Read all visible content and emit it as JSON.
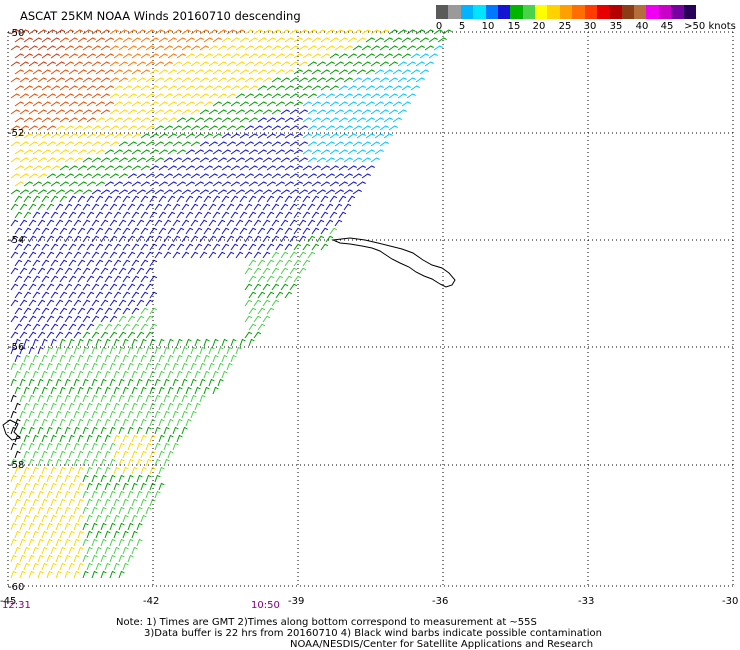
{
  "title": "ASCAT 25KM NOAA Winds 20160710 descending",
  "legend": {
    "labels": [
      "0",
      "5",
      "10",
      "15",
      "20",
      "25",
      "30",
      "35",
      "40",
      "45",
      ">50 knots"
    ],
    "colors": [
      "#5a5a5a",
      "#9a9a9a",
      "#00b4ff",
      "#00e4ff",
      "#0078ff",
      "#1414d2",
      "#00b400",
      "#4ad24a",
      "#ffff00",
      "#ffd200",
      "#ffa000",
      "#ff6e00",
      "#ff3c00",
      "#e60000",
      "#b40000",
      "#8c3c14",
      "#b46e3c",
      "#f000f0",
      "#c800c8",
      "#7800a0",
      "#28005a"
    ]
  },
  "axes": {
    "lat_labels": [
      "-50",
      "-52",
      "-54",
      "-56",
      "-58",
      "-60"
    ],
    "lon_labels": [
      "-45",
      "-42",
      "-39",
      "-36",
      "-33",
      "-30"
    ],
    "time_labels": [
      "12:31",
      "10:50"
    ],
    "time_color": "#800080"
  },
  "notes": {
    "line1": "Note: 1) Times are GMT 2)Times along bottom correspond to measurement at ~55S",
    "line2": "3)Data buffer is 22 hrs from 20160710 4) Black wind barbs indicate possible contamination",
    "line3": "NOAA/NESDIS/Center for Satellite Applications and Research"
  },
  "wind_colors": {
    "orange": "#ff7800",
    "dark_orange": "#e65000",
    "red_brown": "#c83c14",
    "yellow": "#ffd700",
    "green": "#00a000",
    "light_green": "#4ad24a",
    "blue": "#1414d2",
    "cyan": "#00c8ff",
    "black": "#000000"
  }
}
